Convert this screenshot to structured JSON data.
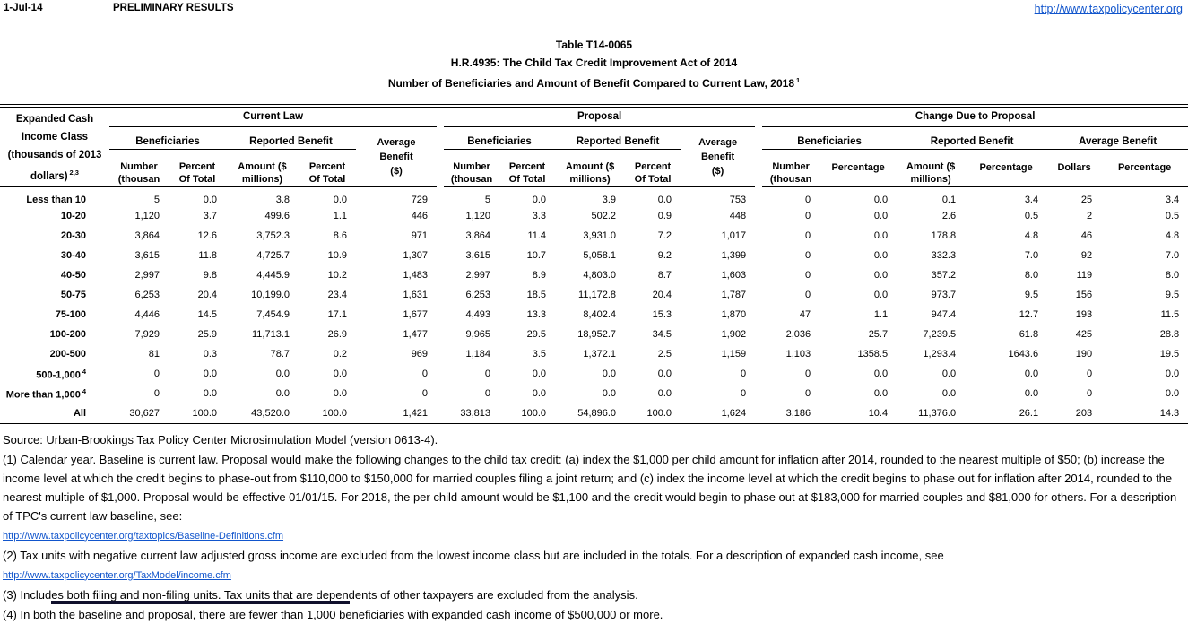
{
  "topbar": {
    "date": "1-Jul-14",
    "status": "PRELIMINARY RESULTS",
    "site_url": "http://www.taxpolicycenter.org"
  },
  "title": {
    "line1": "Table T14-0065",
    "line2": "H.R.4935: The Child Tax Credit Improvement Act of 2014",
    "line3": "Number of Beneficiaries and Amount of Benefit Compared to Current Law, 2018",
    "line3_sup": "1"
  },
  "colors": {
    "link_blue": "#1155CC",
    "window_edge_bar": "#10102c"
  },
  "table": {
    "header": {
      "row_label_lines": "Expanded Cash\nIncome Class\n(thousands of 2013",
      "row_label_line4": "dollars)",
      "row_label_sup": "2,3",
      "group_current_law": "Current Law",
      "group_proposal": "Proposal",
      "group_change": "Change Due to Proposal",
      "beneficiaries": "Beneficiaries",
      "reported_benefit": "Reported Benefit",
      "average_benefit_dollars": "Average\nBenefit\n($)",
      "average_benefit": "Average Benefit",
      "number_thousands": "Number\n(thousan",
      "percent_of_total": "Percent\nOf Total",
      "amount_millions": "Amount ($\nmillions)",
      "percentage": "Percentage",
      "dollars": "Dollars"
    },
    "rows": [
      {
        "label": "Less than 10",
        "sup": "",
        "values": [
          "5",
          "0.0",
          "3.8",
          "0.0",
          "729",
          "5",
          "0.0",
          "3.9",
          "0.0",
          "753",
          "0",
          "0.0",
          "0.1",
          "3.4",
          "25",
          "3.4"
        ]
      },
      {
        "label": "10-20",
        "sup": "",
        "values": [
          "1,120",
          "3.7",
          "499.6",
          "1.1",
          "446",
          "1,120",
          "3.3",
          "502.2",
          "0.9",
          "448",
          "0",
          "0.0",
          "2.6",
          "0.5",
          "2",
          "0.5"
        ]
      },
      {
        "label": "20-30",
        "sup": "",
        "values": [
          "3,864",
          "12.6",
          "3,752.3",
          "8.6",
          "971",
          "3,864",
          "11.4",
          "3,931.0",
          "7.2",
          "1,017",
          "0",
          "0.0",
          "178.8",
          "4.8",
          "46",
          "4.8"
        ]
      },
      {
        "label": "30-40",
        "sup": "",
        "values": [
          "3,615",
          "11.8",
          "4,725.7",
          "10.9",
          "1,307",
          "3,615",
          "10.7",
          "5,058.1",
          "9.2",
          "1,399",
          "0",
          "0.0",
          "332.3",
          "7.0",
          "92",
          "7.0"
        ]
      },
      {
        "label": "40-50",
        "sup": "",
        "values": [
          "2,997",
          "9.8",
          "4,445.9",
          "10.2",
          "1,483",
          "2,997",
          "8.9",
          "4,803.0",
          "8.7",
          "1,603",
          "0",
          "0.0",
          "357.2",
          "8.0",
          "119",
          "8.0"
        ]
      },
      {
        "label": "50-75",
        "sup": "",
        "values": [
          "6,253",
          "20.4",
          "10,199.0",
          "23.4",
          "1,631",
          "6,253",
          "18.5",
          "11,172.8",
          "20.4",
          "1,787",
          "0",
          "0.0",
          "973.7",
          "9.5",
          "156",
          "9.5"
        ]
      },
      {
        "label": "75-100",
        "sup": "",
        "values": [
          "4,446",
          "14.5",
          "7,454.9",
          "17.1",
          "1,677",
          "4,493",
          "13.3",
          "8,402.4",
          "15.3",
          "1,870",
          "47",
          "1.1",
          "947.4",
          "12.7",
          "193",
          "11.5"
        ]
      },
      {
        "label": "100-200",
        "sup": "",
        "values": [
          "7,929",
          "25.9",
          "11,713.1",
          "26.9",
          "1,477",
          "9,965",
          "29.5",
          "18,952.7",
          "34.5",
          "1,902",
          "2,036",
          "25.7",
          "7,239.5",
          "61.8",
          "425",
          "28.8"
        ]
      },
      {
        "label": "200-500",
        "sup": "",
        "values": [
          "81",
          "0.3",
          "78.7",
          "0.2",
          "969",
          "1,184",
          "3.5",
          "1,372.1",
          "2.5",
          "1,159",
          "1,103",
          "1358.5",
          "1,293.4",
          "1643.6",
          "190",
          "19.5"
        ]
      },
      {
        "label": "500-1,000",
        "sup": "4",
        "values": [
          "0",
          "0.0",
          "0.0",
          "0.0",
          "0",
          "0",
          "0.0",
          "0.0",
          "0.0",
          "0",
          "0",
          "0.0",
          "0.0",
          "0.0",
          "0",
          "0.0"
        ]
      },
      {
        "label": "More than 1,000",
        "sup": "4",
        "values": [
          "0",
          "0.0",
          "0.0",
          "0.0",
          "0",
          "0",
          "0.0",
          "0.0",
          "0.0",
          "0",
          "0",
          "0.0",
          "0.0",
          "0.0",
          "0",
          "0.0"
        ]
      },
      {
        "label": "All",
        "sup": "",
        "total": true,
        "values": [
          "30,627",
          "100.0",
          "43,520.0",
          "100.0",
          "1,421",
          "33,813",
          "100.0",
          "54,896.0",
          "100.0",
          "1,624",
          "3,186",
          "10.4",
          "11,376.0",
          "26.1",
          "203",
          "14.3"
        ]
      }
    ]
  },
  "notes": [
    {
      "type": "text",
      "text": "Source: Urban-Brookings Tax Policy Center Microsimulation Model (version 0613-4)."
    },
    {
      "type": "text",
      "text": "(1) Calendar year. Baseline is current law. Proposal would make the following changes to the child tax credit: (a) index the $1,000 per child amount for inflation after 2014, rounded to the nearest multiple of $50; (b) increase the income level at which the credit begins to phase-out from $110,000 to $150,000 for married couples filing a joint return; and (c) index the income level at which the credit begins to phase out for inflation after 2014, rounded to the nearest multiple of $1,000. Proposal would be effective 01/01/15. For 2018, the per child amount would be $1,100 and the credit would begin to phase out at $183,000 for married couples and $81,000 for others. For a description of TPC's current law baseline, see:"
    },
    {
      "type": "link",
      "text": "http://www.taxpolicycenter.org/taxtopics/Baseline-Definitions.cfm"
    },
    {
      "type": "text",
      "text": "(2) Tax units with negative current law adjusted gross income are excluded from the lowest income class but are included in the totals. For a description of expanded cash income, see"
    },
    {
      "type": "link",
      "text": "http://www.taxpolicycenter.org/TaxModel/income.cfm"
    },
    {
      "type": "text",
      "text": "(3) Includes both filing and non-filing units.  Tax units that are dependents of other taxpayers are excluded from the analysis."
    },
    {
      "type": "text",
      "text": "(4) In both the baseline and proposal, there are fewer than 1,000 beneficiaries with expanded cash income of $500,000 or more."
    }
  ]
}
